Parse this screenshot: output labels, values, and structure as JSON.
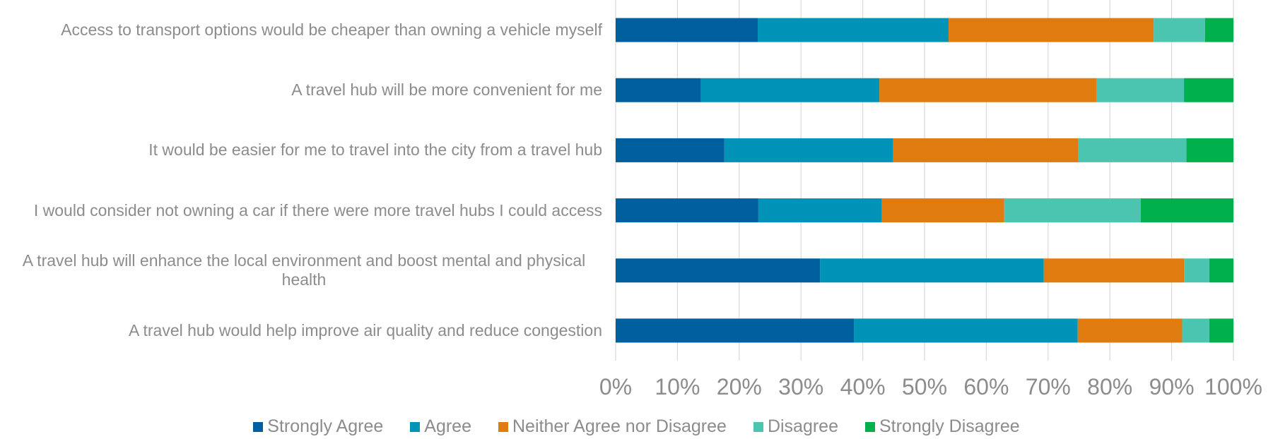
{
  "chart_data": {
    "type": "stacked-bar-horizontal",
    "categories": [
      "Access to transport options would be cheaper than owning a vehicle myself",
      "A travel hub will be more convenient for me",
      "It would be easier for me to travel into the city from a travel hub",
      "I would consider not owning a car if there were more travel hubs I could access",
      "A travel hub will enhance the local environment and boost mental and physical health",
      "A travel hub would help improve air quality and reduce congestion"
    ],
    "series": [
      {
        "name": "Strongly Agree",
        "color": "#005f9e",
        "values": [
          23.0,
          13.8,
          17.6,
          23.1,
          33.1,
          38.6
        ]
      },
      {
        "name": "Agree",
        "color": "#0093b8",
        "values": [
          30.9,
          28.9,
          27.3,
          20.0,
          36.2,
          36.2
        ]
      },
      {
        "name": "Neither Agree nor Disagree",
        "color": "#e07b10",
        "values": [
          33.2,
          35.1,
          30.0,
          19.8,
          22.7,
          16.9
        ]
      },
      {
        "name": "Disagree",
        "color": "#4bc4b0",
        "values": [
          8.3,
          14.2,
          17.5,
          22.1,
          4.1,
          4.4
        ]
      },
      {
        "name": "Strongly Disagree",
        "color": "#00b04c",
        "values": [
          4.6,
          8.0,
          7.6,
          15.0,
          3.9,
          3.9
        ]
      }
    ],
    "xlim": [
      0,
      100
    ],
    "xticks": [
      {
        "value": 0,
        "label": "0%"
      },
      {
        "value": 10,
        "label": "10%"
      },
      {
        "value": 20,
        "label": "20%"
      },
      {
        "value": 30,
        "label": "30%"
      },
      {
        "value": 40,
        "label": "40%"
      },
      {
        "value": 50,
        "label": "50%"
      },
      {
        "value": 60,
        "label": "60%"
      },
      {
        "value": 70,
        "label": "70%"
      },
      {
        "value": 80,
        "label": "80%"
      },
      {
        "value": 90,
        "label": "90%"
      },
      {
        "value": 100,
        "label": "100%"
      }
    ],
    "grid": true,
    "legend": "bottom"
  }
}
